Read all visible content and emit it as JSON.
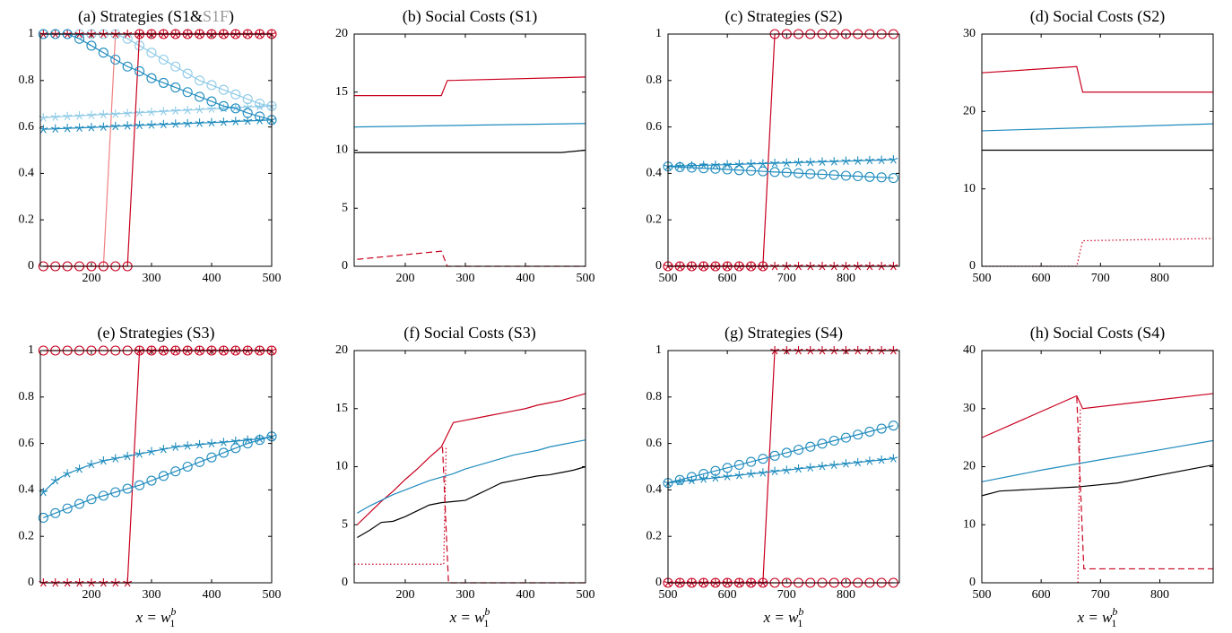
{
  "chart_data": [
    {
      "type": "line",
      "title": "(a) Strategies (S1&",
      "title_accent": "S1F",
      "title_accent_color": "#999999",
      "title_end": ")",
      "xlim": [
        115,
        500
      ],
      "xticks": [
        200,
        300,
        400,
        500
      ],
      "ylim": [
        0,
        1
      ],
      "yticks": [
        0,
        0.2,
        0.4,
        0.6,
        0.8,
        1
      ],
      "x": [
        120,
        140,
        160,
        180,
        200,
        220,
        240,
        260,
        280,
        300,
        320,
        340,
        360,
        380,
        400,
        420,
        440,
        460,
        480,
        500
      ],
      "series": [
        {
          "color": "#f08080",
          "marker": "none",
          "values": [
            0,
            0,
            0,
            0,
            0,
            0,
            1,
            1,
            1,
            1,
            1,
            1,
            1,
            1,
            1,
            1,
            1,
            1,
            1,
            1
          ]
        },
        {
          "color": "#8ecae6",
          "marker": "circle",
          "values": [
            1,
            1,
            1,
            1,
            1,
            1,
            1,
            0.98,
            0.95,
            0.92,
            0.89,
            0.86,
            0.83,
            0.8,
            0.78,
            0.76,
            0.74,
            0.72,
            0.7,
            0.69
          ]
        },
        {
          "color": "#8ecae6",
          "marker": "star",
          "values": [
            0.64,
            0.643,
            0.646,
            0.648,
            0.651,
            0.654,
            0.656,
            0.659,
            0.662,
            0.664,
            0.667,
            0.67,
            0.672,
            0.675,
            0.678,
            0.68,
            0.683,
            0.686,
            0.688,
            0.69
          ]
        },
        {
          "color": "#c8001e",
          "marker": "circle",
          "values": [
            0,
            0,
            0,
            0,
            0,
            0,
            0,
            0,
            1,
            1,
            1,
            1,
            1,
            1,
            1,
            1,
            1,
            1,
            1,
            1
          ]
        },
        {
          "color": "#c8001e",
          "marker": "star",
          "values": [
            1,
            1,
            1,
            1,
            1,
            1,
            1,
            1,
            1,
            1,
            1,
            1,
            1,
            1,
            1,
            1,
            1,
            1,
            1,
            1
          ]
        },
        {
          "color": "#1f8bbd",
          "marker": "circle",
          "values": [
            1,
            1,
            1,
            0.98,
            0.95,
            0.92,
            0.89,
            0.86,
            0.84,
            0.81,
            0.79,
            0.77,
            0.75,
            0.73,
            0.71,
            0.69,
            0.68,
            0.66,
            0.645,
            0.63
          ]
        },
        {
          "color": "#1f8bbd",
          "marker": "star",
          "values": [
            0.59,
            0.592,
            0.594,
            0.596,
            0.598,
            0.6,
            0.603,
            0.605,
            0.607,
            0.609,
            0.611,
            0.613,
            0.615,
            0.617,
            0.619,
            0.621,
            0.624,
            0.626,
            0.628,
            0.63
          ]
        }
      ]
    },
    {
      "type": "line",
      "title": "(b) Social Costs (S1)",
      "xlim": [
        115,
        500
      ],
      "xticks": [
        200,
        300,
        400,
        500
      ],
      "ylim": [
        0,
        20
      ],
      "yticks": [
        0,
        5,
        10,
        15,
        20
      ],
      "series": [
        {
          "color": "#c8001e",
          "marker": "none",
          "x": [
            115,
            260,
            270,
            500
          ],
          "values": [
            14.7,
            14.7,
            16,
            16.3
          ]
        },
        {
          "color": "#1f8bbd",
          "marker": "none",
          "x": [
            115,
            500
          ],
          "values": [
            12,
            12.3
          ]
        },
        {
          "color": "#000000",
          "marker": "none",
          "x": [
            115,
            460,
            500
          ],
          "values": [
            9.8,
            9.8,
            10
          ]
        },
        {
          "color": "#c8001e",
          "marker": "none",
          "dash": "dashed",
          "x": [
            120,
            260,
            270,
            500
          ],
          "values": [
            0.6,
            1.3,
            0,
            0
          ]
        }
      ]
    },
    {
      "type": "line",
      "title": "(c) Strategies (S2)",
      "xlim": [
        500,
        890
      ],
      "xticks": [
        500,
        600,
        700,
        800
      ],
      "ylim": [
        0,
        1
      ],
      "yticks": [
        0,
        0.2,
        0.4,
        0.6,
        0.8,
        1
      ],
      "x": [
        500,
        520,
        540,
        560,
        580,
        600,
        620,
        640,
        660,
        680,
        700,
        720,
        740,
        760,
        780,
        800,
        820,
        840,
        860,
        880
      ],
      "series": [
        {
          "color": "#c8001e",
          "marker": "circle",
          "values": [
            0,
            0,
            0,
            0,
            0,
            0,
            0,
            0,
            0,
            1,
            1,
            1,
            1,
            1,
            1,
            1,
            1,
            1,
            1,
            1
          ]
        },
        {
          "color": "#c8001e",
          "marker": "star",
          "values": [
            0,
            0,
            0,
            0,
            0,
            0,
            0,
            0,
            0,
            0,
            0,
            0,
            0,
            0,
            0,
            0,
            0,
            0,
            0,
            0
          ]
        },
        {
          "color": "#1f8bbd",
          "marker": "star",
          "values": [
            0.43,
            0.432,
            0.433,
            0.435,
            0.436,
            0.438,
            0.439,
            0.441,
            0.442,
            0.444,
            0.445,
            0.447,
            0.448,
            0.45,
            0.451,
            0.453,
            0.454,
            0.456,
            0.457,
            0.459
          ]
        },
        {
          "color": "#1f8bbd",
          "marker": "circle",
          "values": [
            0.43,
            0.427,
            0.425,
            0.422,
            0.42,
            0.417,
            0.414,
            0.412,
            0.409,
            0.406,
            0.404,
            0.401,
            0.398,
            0.396,
            0.393,
            0.39,
            0.388,
            0.385,
            0.383,
            0.38
          ]
        }
      ]
    },
    {
      "type": "line",
      "title": "(d) Social Costs (S2)",
      "xlim": [
        500,
        890
      ],
      "xticks": [
        500,
        600,
        700,
        800
      ],
      "ylim": [
        0,
        30
      ],
      "yticks": [
        0,
        10,
        20,
        30
      ],
      "series": [
        {
          "color": "#c8001e",
          "marker": "none",
          "x": [
            500,
            660,
            670,
            890
          ],
          "values": [
            25,
            25.8,
            22.5,
            22.5
          ]
        },
        {
          "color": "#1f8bbd",
          "marker": "none",
          "x": [
            500,
            890
          ],
          "values": [
            17.5,
            18.4
          ]
        },
        {
          "color": "#000000",
          "marker": "none",
          "x": [
            500,
            890
          ],
          "values": [
            15,
            15
          ]
        },
        {
          "color": "#c8001e",
          "marker": "none",
          "dash": "dotted",
          "x": [
            500,
            660,
            670,
            890
          ],
          "values": [
            0,
            0,
            3.3,
            3.6
          ]
        }
      ]
    },
    {
      "type": "line",
      "title": "(e) Strategies (S3)",
      "xlabel": "x = w",
      "xlabel_sub": "1",
      "xlabel_sup": "b",
      "xlim": [
        115,
        500
      ],
      "xticks": [
        200,
        300,
        400,
        500
      ],
      "ylim": [
        0,
        1
      ],
      "yticks": [
        0,
        0.2,
        0.4,
        0.6,
        0.8,
        1
      ],
      "x": [
        120,
        140,
        160,
        180,
        200,
        220,
        240,
        260,
        280,
        300,
        320,
        340,
        360,
        380,
        400,
        420,
        440,
        460,
        480,
        500
      ],
      "series": [
        {
          "color": "#c8001e",
          "marker": "circle",
          "values": [
            1,
            1,
            1,
            1,
            1,
            1,
            1,
            1,
            1,
            1,
            1,
            1,
            1,
            1,
            1,
            1,
            1,
            1,
            1,
            1
          ]
        },
        {
          "color": "#c8001e",
          "marker": "star",
          "values": [
            0,
            0,
            0,
            0,
            0,
            0,
            0,
            0,
            1,
            1,
            1,
            1,
            1,
            1,
            1,
            1,
            1,
            1,
            1,
            1
          ]
        },
        {
          "color": "#1f8bbd",
          "marker": "star",
          "values": [
            0.39,
            0.44,
            0.47,
            0.49,
            0.51,
            0.525,
            0.535,
            0.545,
            0.555,
            0.565,
            0.575,
            0.585,
            0.59,
            0.595,
            0.6,
            0.605,
            0.61,
            0.615,
            0.62,
            0.63
          ]
        },
        {
          "color": "#1f8bbd",
          "marker": "circle",
          "values": [
            0.28,
            0.3,
            0.32,
            0.34,
            0.36,
            0.375,
            0.39,
            0.405,
            0.42,
            0.44,
            0.46,
            0.48,
            0.5,
            0.52,
            0.54,
            0.56,
            0.58,
            0.6,
            0.615,
            0.63
          ]
        }
      ]
    },
    {
      "type": "line",
      "title": "(f) Social Costs (S3)",
      "xlabel": "x = w",
      "xlabel_sub": "1",
      "xlabel_sup": "b",
      "xlim": [
        115,
        500
      ],
      "xticks": [
        200,
        300,
        400,
        500
      ],
      "ylim": [
        0,
        20
      ],
      "yticks": [
        0,
        5,
        10,
        15,
        20
      ],
      "x": [
        120,
        140,
        160,
        180,
        200,
        220,
        240,
        260,
        280,
        300,
        320,
        340,
        360,
        380,
        400,
        420,
        440,
        460,
        480,
        500
      ],
      "series": [
        {
          "color": "#c8001e",
          "marker": "none",
          "values": [
            5,
            6,
            7,
            7.9,
            8.9,
            9.8,
            10.8,
            11.7,
            13.8,
            14,
            14.2,
            14.4,
            14.6,
            14.8,
            15,
            15.3,
            15.5,
            15.7,
            16,
            16.3
          ]
        },
        {
          "color": "#1f8bbd",
          "marker": "none",
          "values": [
            6,
            6.6,
            7.1,
            7.6,
            8,
            8.4,
            8.8,
            9.1,
            9.4,
            9.8,
            10.1,
            10.4,
            10.7,
            11,
            11.2,
            11.4,
            11.7,
            11.9,
            12.1,
            12.3
          ]
        },
        {
          "color": "#000000",
          "marker": "none",
          "values": [
            3.9,
            4.5,
            5.2,
            5.3,
            5.7,
            6.2,
            6.7,
            6.9,
            7,
            7.1,
            7.6,
            8.1,
            8.6,
            8.8,
            9,
            9.2,
            9.3,
            9.5,
            9.7,
            10
          ]
        },
        {
          "color": "#c8001e",
          "marker": "none",
          "dash": "dotted",
          "x": [
            115,
            264,
            268
          ],
          "values": [
            1.6,
            1.6,
            11.7
          ]
        },
        {
          "color": "#c8001e",
          "marker": "none",
          "dash": "dashed",
          "x": [
            262,
            272,
            500
          ],
          "values": [
            11.7,
            0,
            0
          ]
        }
      ]
    },
    {
      "type": "line",
      "title": "(g) Strategies (S4)",
      "xlabel": "x = w",
      "xlabel_sub": "1",
      "xlabel_sup": "b",
      "xlim": [
        500,
        890
      ],
      "xticks": [
        500,
        600,
        700,
        800
      ],
      "ylim": [
        0,
        1
      ],
      "yticks": [
        0,
        0.2,
        0.4,
        0.6,
        0.8,
        1
      ],
      "x": [
        500,
        520,
        540,
        560,
        580,
        600,
        620,
        640,
        660,
        680,
        700,
        720,
        740,
        760,
        780,
        800,
        820,
        840,
        860,
        880
      ],
      "series": [
        {
          "color": "#c8001e",
          "marker": "star",
          "values": [
            0,
            0,
            0,
            0,
            0,
            0,
            0,
            0,
            0,
            1,
            1,
            1,
            1,
            1,
            1,
            1,
            1,
            1,
            1,
            1
          ]
        },
        {
          "color": "#c8001e",
          "marker": "circle",
          "values": [
            0,
            0,
            0,
            0,
            0,
            0,
            0,
            0,
            0,
            0,
            0,
            0,
            0,
            0,
            0,
            0,
            0,
            0,
            0,
            0
          ]
        },
        {
          "color": "#1f8bbd",
          "marker": "circle",
          "values": [
            0.43,
            0.443,
            0.456,
            0.469,
            0.482,
            0.495,
            0.508,
            0.521,
            0.534,
            0.547,
            0.56,
            0.573,
            0.586,
            0.599,
            0.612,
            0.625,
            0.638,
            0.651,
            0.664,
            0.677
          ]
        },
        {
          "color": "#1f8bbd",
          "marker": "star",
          "values": [
            0.43,
            0.436,
            0.441,
            0.447,
            0.452,
            0.458,
            0.463,
            0.469,
            0.474,
            0.48,
            0.485,
            0.491,
            0.496,
            0.502,
            0.507,
            0.513,
            0.518,
            0.524,
            0.529,
            0.535
          ]
        }
      ]
    },
    {
      "type": "line",
      "title": "(h) Social Costs (S4)",
      "xlabel": "x = w",
      "xlabel_sub": "1",
      "xlabel_sup": "b",
      "xlim": [
        500,
        890
      ],
      "xticks": [
        500,
        600,
        700,
        800
      ],
      "ylim": [
        0,
        40
      ],
      "yticks": [
        0,
        10,
        20,
        30,
        40
      ],
      "series": [
        {
          "color": "#c8001e",
          "marker": "none",
          "x": [
            500,
            660,
            670,
            890
          ],
          "values": [
            25,
            32.2,
            30,
            32.6
          ]
        },
        {
          "color": "#1f8bbd",
          "marker": "none",
          "x": [
            500,
            600,
            700,
            800,
            890
          ],
          "values": [
            17.4,
            19.4,
            21.2,
            22.9,
            24.5
          ]
        },
        {
          "color": "#000000",
          "marker": "none",
          "x": [
            500,
            530,
            660,
            730,
            890
          ],
          "values": [
            15,
            15.8,
            16.5,
            17.2,
            20.3
          ]
        },
        {
          "color": "#c8001e",
          "marker": "none",
          "dash": "dashed",
          "x": [
            660,
            672,
            890
          ],
          "values": [
            32,
            2.4,
            2.4
          ]
        },
        {
          "color": "#c8001e",
          "marker": "none",
          "dash": "dotted",
          "x": [
            662,
            666
          ],
          "values": [
            0,
            30
          ]
        }
      ]
    }
  ]
}
